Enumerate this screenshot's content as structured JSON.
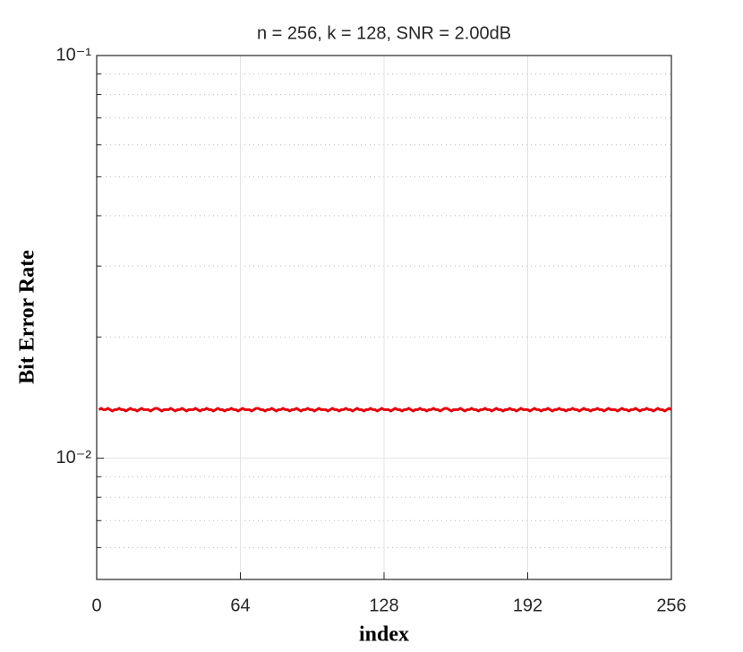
{
  "chart_data": {
    "type": "line",
    "title": "n = 256, k = 128, SNR = 2.00dB",
    "x_label": "index",
    "y_label": "Bit Error Rate",
    "x": [
      1,
      2,
      3,
      4,
      5,
      6,
      7,
      8,
      9,
      10,
      11,
      12,
      13,
      14,
      15,
      16,
      17,
      18,
      19,
      20,
      21,
      22,
      23,
      24,
      25,
      26,
      27,
      28,
      29,
      30,
      31,
      32,
      33,
      34,
      35,
      36,
      37,
      38,
      39,
      40,
      41,
      42,
      43,
      44,
      45,
      46,
      47,
      48,
      49,
      50,
      51,
      52,
      53,
      54,
      55,
      56,
      57,
      58,
      59,
      60,
      61,
      62,
      63,
      64,
      65,
      66,
      67,
      68,
      69,
      70,
      71,
      72,
      73,
      74,
      75,
      76,
      77,
      78,
      79,
      80,
      81,
      82,
      83,
      84,
      85,
      86,
      87,
      88,
      89,
      90,
      91,
      92,
      93,
      94,
      95,
      96,
      97,
      98,
      99,
      100,
      101,
      102,
      103,
      104,
      105,
      106,
      107,
      108,
      109,
      110,
      111,
      112,
      113,
      114,
      115,
      116,
      117,
      118,
      119,
      120,
      121,
      122,
      123,
      124,
      125,
      126,
      127,
      128,
      129,
      130,
      131,
      132,
      133,
      134,
      135,
      136,
      137,
      138,
      139,
      140,
      141,
      142,
      143,
      144,
      145,
      146,
      147,
      148,
      149,
      150,
      151,
      152,
      153,
      154,
      155,
      156,
      157,
      158,
      159,
      160,
      161,
      162,
      163,
      164,
      165,
      166,
      167,
      168,
      169,
      170,
      171,
      172,
      173,
      174,
      175,
      176,
      177,
      178,
      179,
      180,
      181,
      182,
      183,
      184,
      185,
      186,
      187,
      188,
      189,
      190,
      191,
      192,
      193,
      194,
      195,
      196,
      197,
      198,
      199,
      200,
      201,
      202,
      203,
      204,
      205,
      206,
      207,
      208,
      209,
      210,
      211,
      212,
      213,
      214,
      215,
      216,
      217,
      218,
      219,
      220,
      221,
      222,
      223,
      224,
      225,
      226,
      227,
      228,
      229,
      230,
      231,
      232,
      233,
      234,
      235,
      236,
      237,
      238,
      239,
      240,
      241,
      242,
      243,
      244,
      245,
      246,
      247,
      248,
      249,
      250,
      251,
      252,
      253,
      254,
      255,
      256
    ],
    "series": [
      {
        "color": "#e8000b",
        "values": [
          0.0132,
          0.0133,
          0.0132,
          0.0132,
          0.0133,
          0.0132,
          0.0131,
          0.0132,
          0.0132,
          0.0133,
          0.0132,
          0.0132,
          0.0131,
          0.0132,
          0.0133,
          0.0132,
          0.0132,
          0.0131,
          0.0132,
          0.0133,
          0.0132,
          0.0132,
          0.0132,
          0.0131,
          0.0132,
          0.0133,
          0.0133,
          0.0132,
          0.0131,
          0.0132,
          0.0132,
          0.0132,
          0.0133,
          0.0132,
          0.0131,
          0.0132,
          0.0132,
          0.0133,
          0.0132,
          0.0131,
          0.0132,
          0.0132,
          0.0132,
          0.0133,
          0.0132,
          0.0131,
          0.0132,
          0.0132,
          0.0133,
          0.0132,
          0.0132,
          0.0131,
          0.0132,
          0.0133,
          0.0132,
          0.0132,
          0.0131,
          0.0132,
          0.0132,
          0.0133,
          0.0132,
          0.0132,
          0.0131,
          0.0132,
          0.0133,
          0.0132,
          0.0132,
          0.0132,
          0.0131,
          0.0132,
          0.0133,
          0.0133,
          0.0132,
          0.0132,
          0.0131,
          0.0132,
          0.0132,
          0.0133,
          0.0132,
          0.0131,
          0.0132,
          0.0132,
          0.0133,
          0.0132,
          0.0132,
          0.0131,
          0.0132,
          0.0132,
          0.0133,
          0.0132,
          0.0131,
          0.0132,
          0.0132,
          0.0133,
          0.0132,
          0.0132,
          0.0131,
          0.0132,
          0.0133,
          0.0132,
          0.0132,
          0.0132,
          0.0131,
          0.0132,
          0.0133,
          0.0132,
          0.0132,
          0.0131,
          0.0132,
          0.0132,
          0.0133,
          0.0132,
          0.0132,
          0.0131,
          0.0132,
          0.0133,
          0.0132,
          0.0132,
          0.0131,
          0.0132,
          0.0132,
          0.0133,
          0.0132,
          0.0132,
          0.0131,
          0.0132,
          0.0133,
          0.0132,
          0.0132,
          0.0132,
          0.0131,
          0.0132,
          0.0133,
          0.0132,
          0.0132,
          0.0131,
          0.0132,
          0.0132,
          0.0133,
          0.0132,
          0.0131,
          0.0132,
          0.0132,
          0.0133,
          0.0132,
          0.0132,
          0.0131,
          0.0132,
          0.0132,
          0.0133,
          0.0132,
          0.0132,
          0.0131,
          0.0132,
          0.0133,
          0.0133,
          0.0132,
          0.0131,
          0.0132,
          0.0132,
          0.0132,
          0.0133,
          0.0132,
          0.0131,
          0.0132,
          0.0132,
          0.0133,
          0.0132,
          0.0132,
          0.0131,
          0.0132,
          0.0132,
          0.0133,
          0.0132,
          0.0132,
          0.0131,
          0.0132,
          0.0133,
          0.0132,
          0.0132,
          0.0131,
          0.0132,
          0.0132,
          0.0133,
          0.0132,
          0.0132,
          0.0131,
          0.0132,
          0.0133,
          0.0132,
          0.0132,
          0.0132,
          0.0131,
          0.0132,
          0.0133,
          0.0132,
          0.0132,
          0.0131,
          0.0132,
          0.0132,
          0.0133,
          0.0132,
          0.0131,
          0.0132,
          0.0132,
          0.0133,
          0.0132,
          0.0132,
          0.0131,
          0.0132,
          0.0132,
          0.0133,
          0.0132,
          0.0132,
          0.0131,
          0.0132,
          0.0133,
          0.0132,
          0.0132,
          0.0131,
          0.0132,
          0.0132,
          0.0133,
          0.0132,
          0.0132,
          0.0131,
          0.0132,
          0.0133,
          0.0132,
          0.0132,
          0.0132,
          0.0131,
          0.0132,
          0.0133,
          0.0132,
          0.0132,
          0.0131,
          0.0132,
          0.0132,
          0.0133,
          0.0132,
          0.0131,
          0.0132,
          0.0132,
          0.0133,
          0.0132,
          0.0132,
          0.0131,
          0.0132,
          0.0133,
          0.0132,
          0.0132,
          0.0131,
          0.0132,
          0.0133,
          0.0132
        ]
      }
    ],
    "xlim": [
      0,
      256
    ],
    "xticks": [
      0,
      64,
      128,
      192,
      256
    ],
    "ylim": [
      0.005,
      0.1
    ],
    "ylog": true,
    "yticks": [
      {
        "value": 0.01,
        "label": "10⁻²"
      },
      {
        "value": 0.1,
        "label": "10⁻¹"
      }
    ],
    "yminorticks": [
      0.006,
      0.007,
      0.008,
      0.009,
      0.02,
      0.03,
      0.04,
      0.05,
      0.06,
      0.07,
      0.08,
      0.09
    ],
    "grid": true
  }
}
